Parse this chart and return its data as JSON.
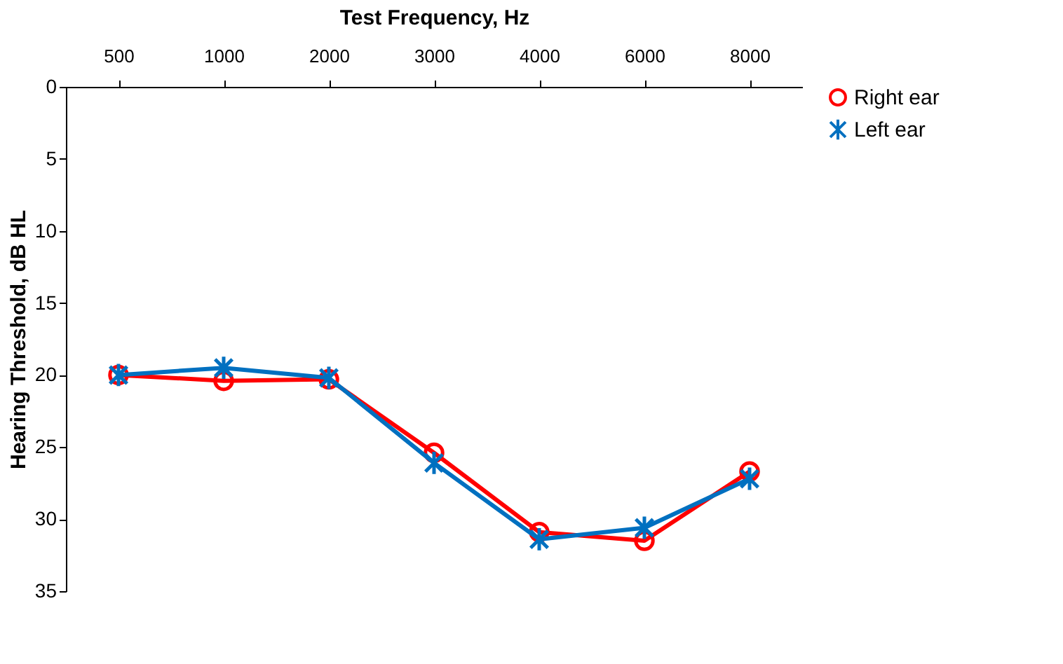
{
  "chart_data": {
    "type": "line",
    "xlabel": "Test Frequency, Hz",
    "ylabel": "Hearing Threshold, dB HL",
    "categories": [
      "500",
      "1000",
      "2000",
      "3000",
      "4000",
      "6000",
      "8000"
    ],
    "ylim": [
      35,
      0
    ],
    "yticks": [
      0,
      5,
      10,
      15,
      20,
      25,
      30,
      35
    ],
    "grid": false,
    "legend": "right",
    "line_style": "solid",
    "series": [
      {
        "name": "Right ear",
        "color": "#ff0000",
        "marker": "circle",
        "values": [
          20,
          20.4,
          20.3,
          25.4,
          30.9,
          31.5,
          26.7
        ]
      },
      {
        "name": "Left ear",
        "color": "#0070c0",
        "marker": "cross",
        "values": [
          20,
          19.5,
          20.2,
          26.1,
          31.4,
          30.6,
          27.2
        ]
      }
    ]
  }
}
